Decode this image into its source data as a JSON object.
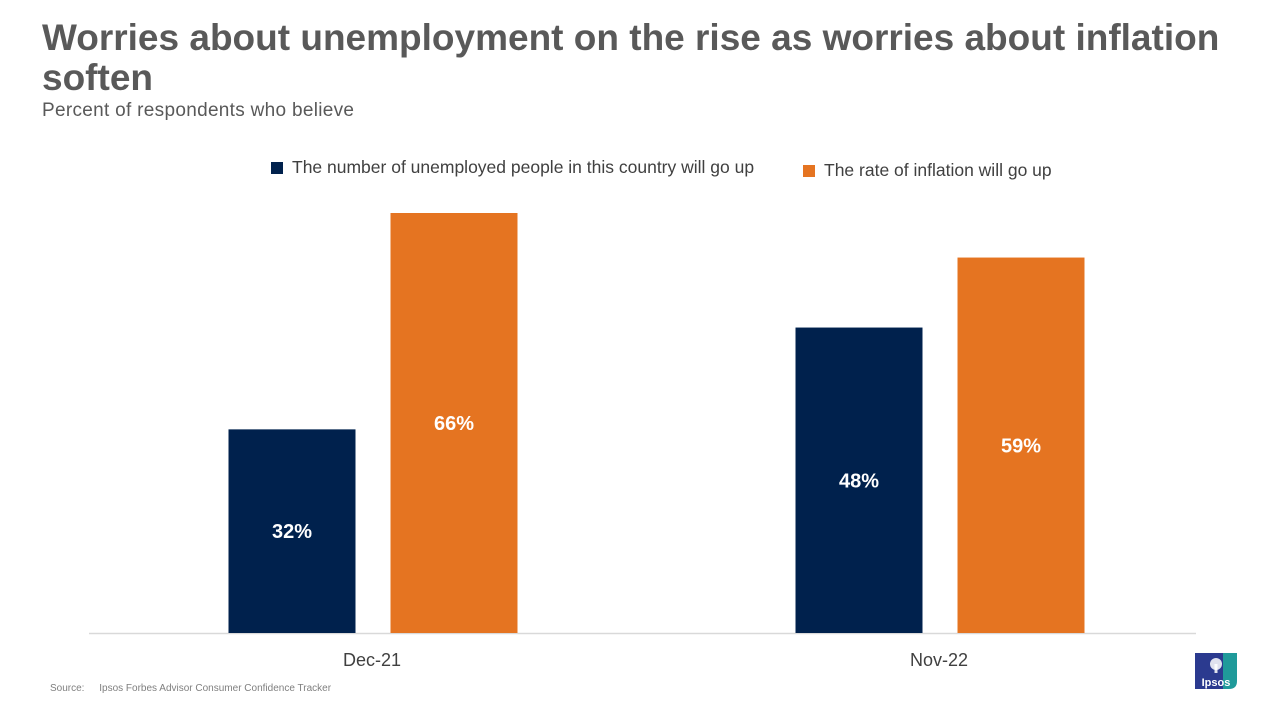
{
  "title": "Worries about unemployment on the rise as worries about inflation soften",
  "subtitle": "Percent of respondents who believe",
  "source": {
    "label": "Source:",
    "text": "Ipsos Forbes Advisor Consumer Confidence Tracker"
  },
  "logo": {
    "text": "Ipsos",
    "icon": "ipsos-logo"
  },
  "colors": {
    "unemployment": "#00214d",
    "inflation": "#e57421",
    "text_dark": "#595959",
    "axis": "#d9d9d9"
  },
  "chart_data": {
    "type": "bar",
    "title": "Worries about unemployment on the rise as worries about inflation soften",
    "subtitle": "Percent of respondents who believe",
    "categories": [
      "Dec-21",
      "Nov-22"
    ],
    "series": [
      {
        "name": "The number of unemployed people in this country will go up",
        "color": "#00214d",
        "values": [
          32,
          48
        ],
        "labels": [
          "32%",
          "48%"
        ]
      },
      {
        "name": "The rate of inflation will go up",
        "color": "#e57421",
        "values": [
          66,
          59
        ],
        "labels": [
          "66%",
          "59%"
        ]
      }
    ],
    "ylim": [
      0,
      66
    ],
    "grid": false,
    "legend": "top",
    "xlabel": "",
    "ylabel": ""
  }
}
